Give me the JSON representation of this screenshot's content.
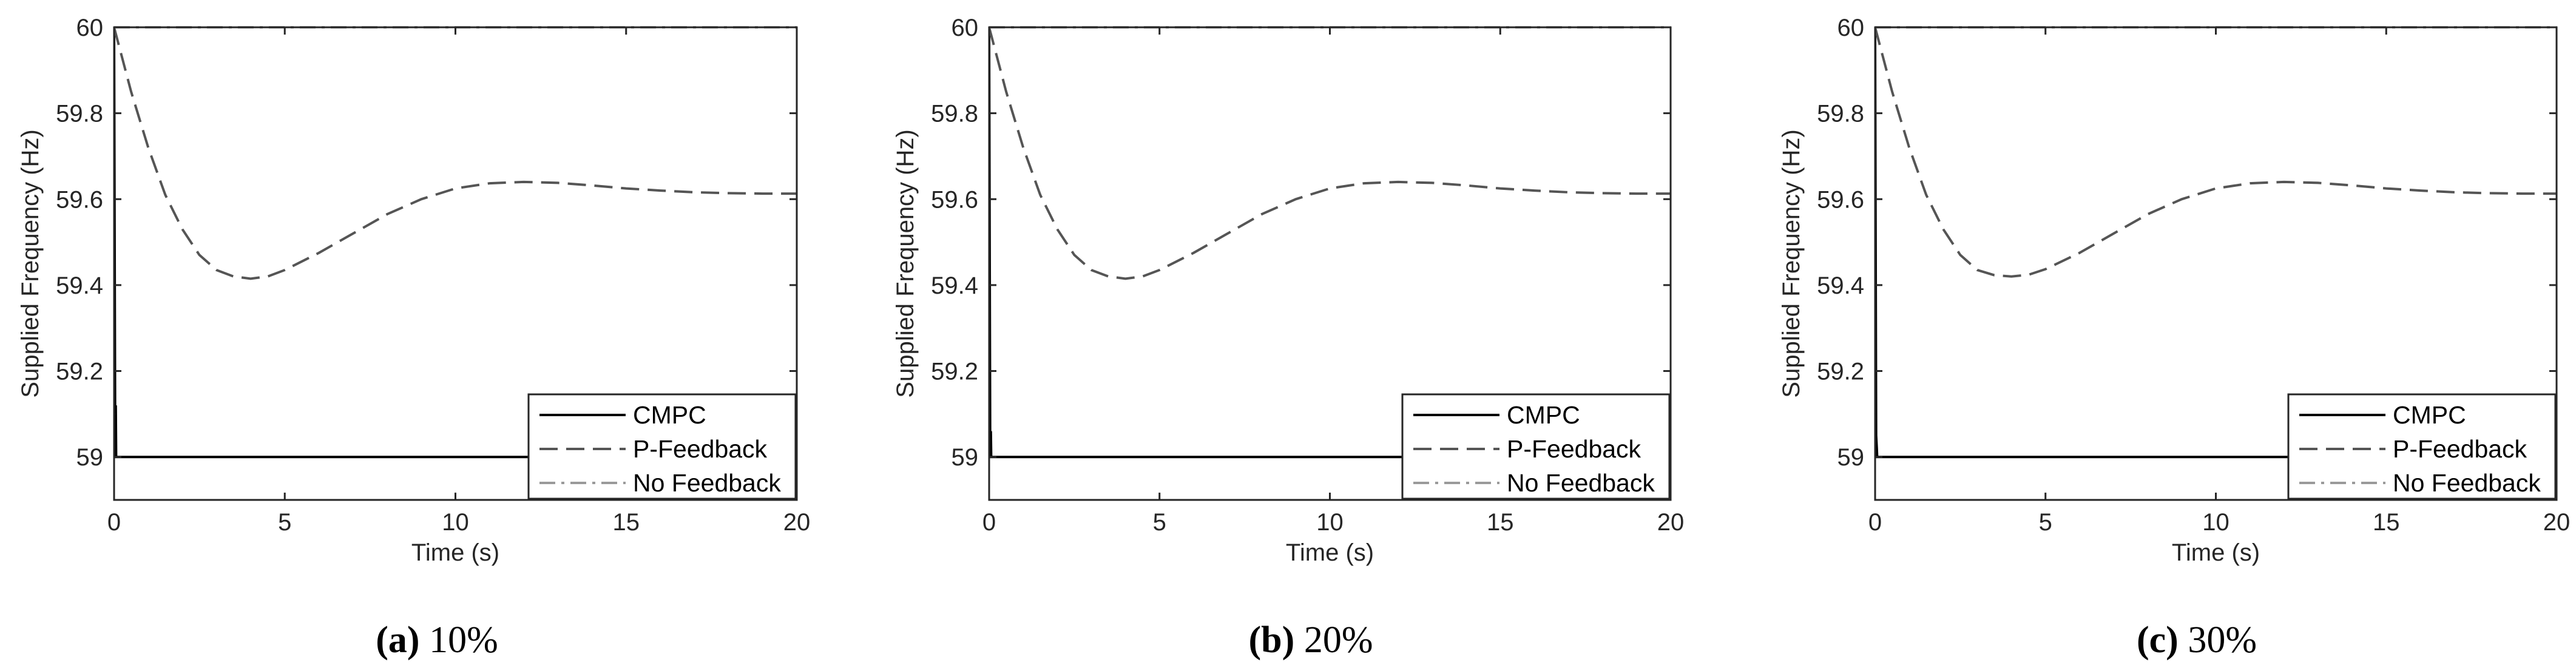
{
  "chart_data": [
    {
      "type": "line",
      "caption_letter": "(a)",
      "caption_text": "10%",
      "xlabel": "Time (s)",
      "ylabel": "Supplied Frequency (Hz)",
      "xlim": [
        0,
        20
      ],
      "ylim": [
        58.9,
        60.0
      ],
      "xticks": [
        "0",
        "5",
        "10",
        "15",
        "20"
      ],
      "yticks": [
        "59",
        "59.2",
        "59.4",
        "59.6",
        "59.8",
        "60"
      ],
      "legend": [
        "CMPC",
        "P-Feedback",
        "No Feedback"
      ],
      "legend_position": "bottom-right",
      "series": [
        {
          "name": "CMPC",
          "x": [
            0,
            0.03,
            0.05,
            0.06,
            20
          ],
          "y": [
            60.0,
            59.1,
            59.12,
            59.0,
            59.0
          ]
        },
        {
          "name": "P-Feedback",
          "x": [
            0,
            0.5,
            1,
            1.5,
            2,
            2.5,
            3,
            3.5,
            4,
            4.5,
            5,
            6,
            7,
            8,
            9,
            10,
            11,
            12,
            13,
            14,
            15,
            16,
            17,
            18,
            19,
            20
          ],
          "y": [
            60.0,
            59.85,
            59.72,
            59.61,
            59.53,
            59.47,
            59.435,
            59.42,
            59.415,
            59.42,
            59.435,
            59.475,
            59.52,
            59.565,
            59.6,
            59.625,
            59.637,
            59.64,
            59.638,
            59.632,
            59.625,
            59.62,
            59.616,
            59.614,
            59.613,
            59.613
          ]
        },
        {
          "name": "No Feedback",
          "x": [
            0,
            20
          ],
          "y": [
            60.0,
            60.0
          ]
        }
      ]
    },
    {
      "type": "line",
      "caption_letter": "(b)",
      "caption_text": "20%",
      "xlabel": "Time (s)",
      "ylabel": "Supplied Frequency (Hz)",
      "xlim": [
        0,
        20
      ],
      "ylim": [
        58.9,
        60.0
      ],
      "xticks": [
        "0",
        "5",
        "10",
        "15",
        "20"
      ],
      "yticks": [
        "59",
        "59.2",
        "59.4",
        "59.6",
        "59.8",
        "60"
      ],
      "legend": [
        "CMPC",
        "P-Feedback",
        "No Feedback"
      ],
      "legend_position": "bottom-right",
      "series": [
        {
          "name": "CMPC",
          "x": [
            0,
            0.03,
            0.05,
            0.06,
            20
          ],
          "y": [
            60.0,
            59.05,
            59.06,
            59.0,
            59.0
          ]
        },
        {
          "name": "P-Feedback",
          "x": [
            0,
            0.5,
            1,
            1.5,
            2,
            2.5,
            3,
            3.5,
            4,
            4.5,
            5,
            6,
            7,
            8,
            9,
            10,
            11,
            12,
            13,
            14,
            15,
            16,
            17,
            18,
            19,
            20
          ],
          "y": [
            60.0,
            59.85,
            59.72,
            59.61,
            59.53,
            59.47,
            59.435,
            59.42,
            59.415,
            59.42,
            59.435,
            59.475,
            59.52,
            59.565,
            59.6,
            59.625,
            59.637,
            59.64,
            59.638,
            59.632,
            59.625,
            59.62,
            59.616,
            59.614,
            59.613,
            59.613
          ]
        },
        {
          "name": "No Feedback",
          "x": [
            0,
            20
          ],
          "y": [
            60.0,
            60.0
          ]
        }
      ]
    },
    {
      "type": "line",
      "caption_letter": "(c)",
      "caption_text": "30%",
      "xlabel": "Time (s)",
      "ylabel": "Supplied Frequency (Hz)",
      "xlim": [
        0,
        20
      ],
      "ylim": [
        58.9,
        60.0
      ],
      "xticks": [
        "0",
        "5",
        "10",
        "15",
        "20"
      ],
      "yticks": [
        "59",
        "59.2",
        "59.4",
        "59.6",
        "59.8",
        "60"
      ],
      "legend": [
        "CMPC",
        "P-Feedback",
        "No Feedback"
      ],
      "legend_position": "bottom-right",
      "series": [
        {
          "name": "CMPC",
          "x": [
            0,
            0.03,
            0.05,
            0.06,
            20
          ],
          "y": [
            60.0,
            59.05,
            59.02,
            59.0,
            59.0
          ]
        },
        {
          "name": "P-Feedback",
          "x": [
            0,
            0.5,
            1,
            1.5,
            2,
            2.5,
            3,
            3.5,
            4,
            4.5,
            5,
            6,
            7,
            8,
            9,
            10,
            11,
            12,
            13,
            14,
            15,
            16,
            17,
            18,
            19,
            20
          ],
          "y": [
            60.0,
            59.85,
            59.72,
            59.61,
            59.53,
            59.47,
            59.435,
            59.423,
            59.42,
            59.424,
            59.437,
            59.475,
            59.52,
            59.565,
            59.6,
            59.625,
            59.637,
            59.64,
            59.638,
            59.632,
            59.625,
            59.62,
            59.616,
            59.614,
            59.613,
            59.613
          ]
        },
        {
          "name": "No Feedback",
          "x": [
            0,
            20
          ],
          "y": [
            60.0,
            60.0
          ]
        }
      ]
    }
  ]
}
